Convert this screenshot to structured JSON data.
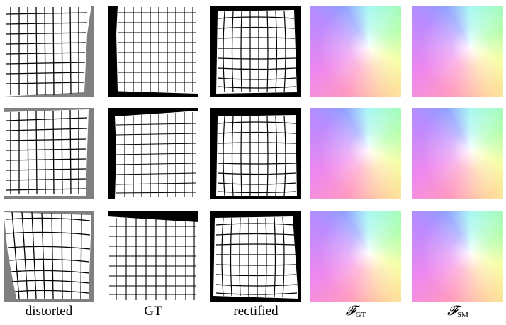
{
  "columns": {
    "distorted": "distorted",
    "gt": "GT",
    "rectified": "rectified",
    "flow_gt": {
      "symbol": "𝓕",
      "subscript": "GT"
    },
    "flow_sm": {
      "symbol": "𝓕",
      "subscript": "SM"
    }
  },
  "colors": {
    "grid": "#000000",
    "background_gray": "#808080",
    "mask_black": "#000000"
  }
}
